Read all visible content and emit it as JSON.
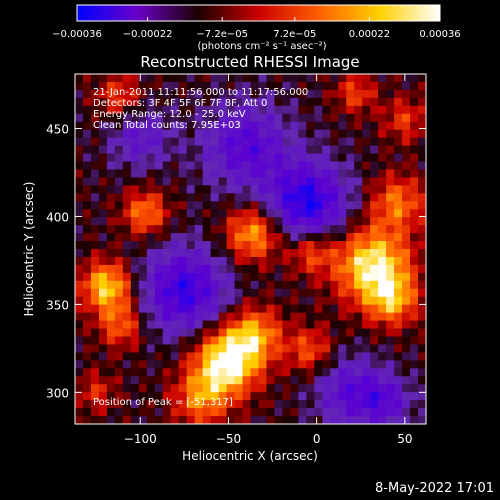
{
  "chart_data": {
    "type": "heatmap",
    "title": "Reconstructed RHESSI Image",
    "xlabel": "Heliocentric X (arcsec)",
    "ylabel": "Heliocentric Y (arcsec)",
    "xlim": [
      -137,
      62
    ],
    "ylim": [
      282,
      481
    ],
    "xticks": [
      -100,
      -50,
      0,
      50
    ],
    "xtick_labels": [
      "−100",
      "−50",
      "0",
      "50"
    ],
    "yticks": [
      300,
      350,
      400,
      450
    ],
    "ytick_labels": [
      "300",
      "350",
      "400",
      "450"
    ],
    "colorbar": {
      "min": -0.00036,
      "max": 0.00036,
      "ticks": [
        -0.00036,
        -0.00022,
        -7.2e-05,
        7.2e-05,
        0.00022,
        0.00036
      ],
      "tick_labels": [
        "−0.00036",
        "−0.00022",
        "−7.2e−05",
        "7.2e−05",
        "0.00022",
        "0.00036"
      ],
      "unit_label": "(photons cm⁻² s⁻¹ asec⁻²)",
      "colors": [
        "#0000ff",
        "#6a00c8",
        "#1a0000",
        "#cc0000",
        "#ff6000",
        "#ffd000",
        "#ffffff"
      ]
    },
    "annotations": {
      "time_range": "21-Jan-2011 11:11:56.000 to 11:17:56.000",
      "detectors": "Detectors: 3F 4F 5F 6F 7F 8F, Att 0",
      "energy_range": "Energy Range: 12.0 - 25.0 keV",
      "clean_counts": "Clean    Total counts: 7.95E+03",
      "peak_position": "Position of Peak = [-51,317]"
    },
    "sources": [
      {
        "x": 32,
        "y": 372,
        "amp": 1.15,
        "sigma": 15
      },
      {
        "x": 43,
        "y": 352,
        "amp": 0.7,
        "sigma": 10
      },
      {
        "x": 46,
        "y": 408,
        "amp": 0.65,
        "sigma": 11
      },
      {
        "x": -51,
        "y": 317,
        "amp": 1.25,
        "sigma": 13
      },
      {
        "x": -35,
        "y": 333,
        "amp": 0.75,
        "sigma": 11
      },
      {
        "x": -66,
        "y": 296,
        "amp": 0.65,
        "sigma": 11
      },
      {
        "x": -119,
        "y": 360,
        "amp": 1.0,
        "sigma": 10
      },
      {
        "x": -111,
        "y": 338,
        "amp": 0.6,
        "sigma": 9
      },
      {
        "x": -36,
        "y": 390,
        "amp": 0.85,
        "sigma": 11
      },
      {
        "x": -3,
        "y": 380,
        "amp": 0.6,
        "sigma": 9
      },
      {
        "x": -97,
        "y": 402,
        "amp": 0.7,
        "sigma": 9
      },
      {
        "x": -4,
        "y": 324,
        "amp": 0.55,
        "sigma": 9
      },
      {
        "x": -112,
        "y": 468,
        "amp": 0.5,
        "sigma": 9
      },
      {
        "x": 50,
        "y": 455,
        "amp": 0.45,
        "sigma": 9
      },
      {
        "x": 22,
        "y": 470,
        "amp": 0.5,
        "sigma": 8
      },
      {
        "x": -125,
        "y": 300,
        "amp": 0.4,
        "sigma": 8
      },
      {
        "x": -75,
        "y": 358,
        "amp": -0.9,
        "sigma": 17
      },
      {
        "x": -5,
        "y": 408,
        "amp": -1.0,
        "sigma": 16
      },
      {
        "x": -40,
        "y": 440,
        "amp": -0.7,
        "sigma": 17
      },
      {
        "x": 20,
        "y": 300,
        "amp": -0.65,
        "sigma": 14
      },
      {
        "x": -100,
        "y": 445,
        "amp": -0.5,
        "sigma": 12
      },
      {
        "x": 40,
        "y": 295,
        "amp": -0.5,
        "sigma": 10
      }
    ]
  },
  "footer": {
    "timestamp": "8-May-2022 17:01"
  }
}
